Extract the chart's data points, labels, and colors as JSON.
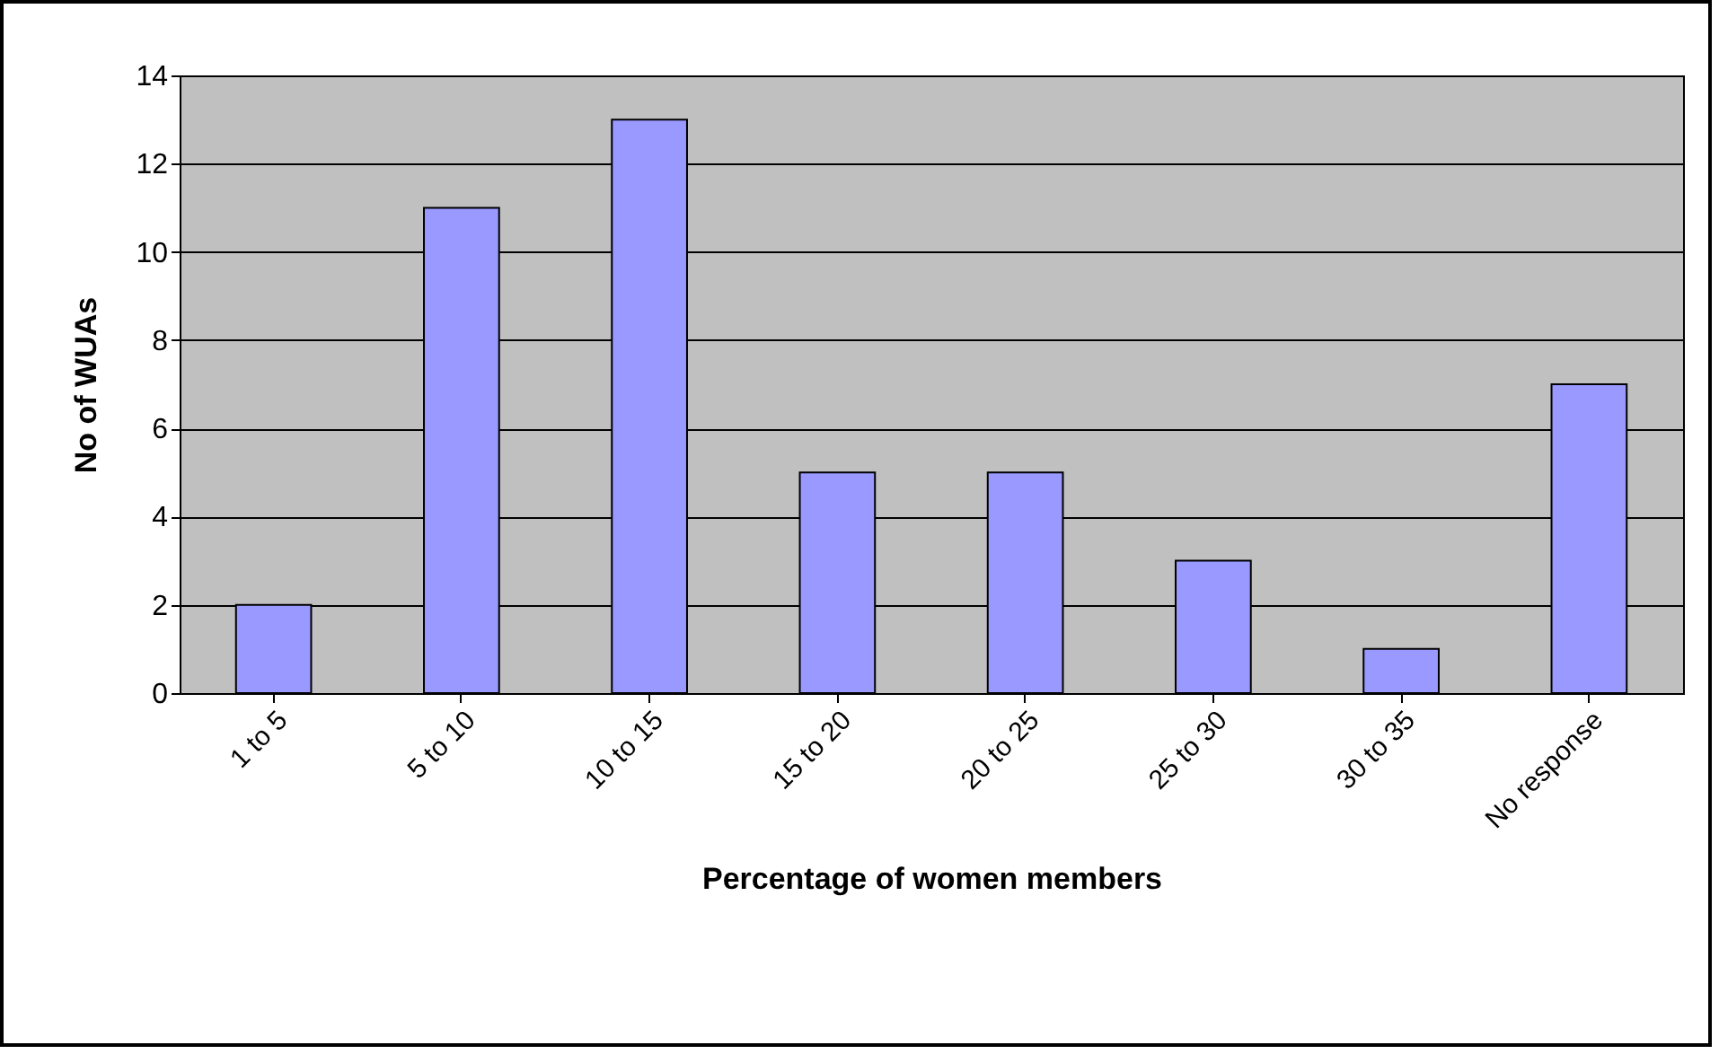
{
  "chart_data": {
    "type": "bar",
    "xlabel": "Percentage of women members",
    "ylabel": "No of WUAs",
    "categories": [
      "1 to 5",
      "5 to 10",
      "10 to 15",
      "15 to 20",
      "20 to 25",
      "25 to 30",
      "30 to 35",
      "No response"
    ],
    "values": [
      2,
      11,
      13,
      5,
      5,
      3,
      1,
      7
    ],
    "color": "#9999ff",
    "ylim": [
      0,
      14
    ],
    "yticks": [
      0,
      2,
      4,
      6,
      8,
      10,
      12,
      14
    ],
    "grid": "y"
  }
}
